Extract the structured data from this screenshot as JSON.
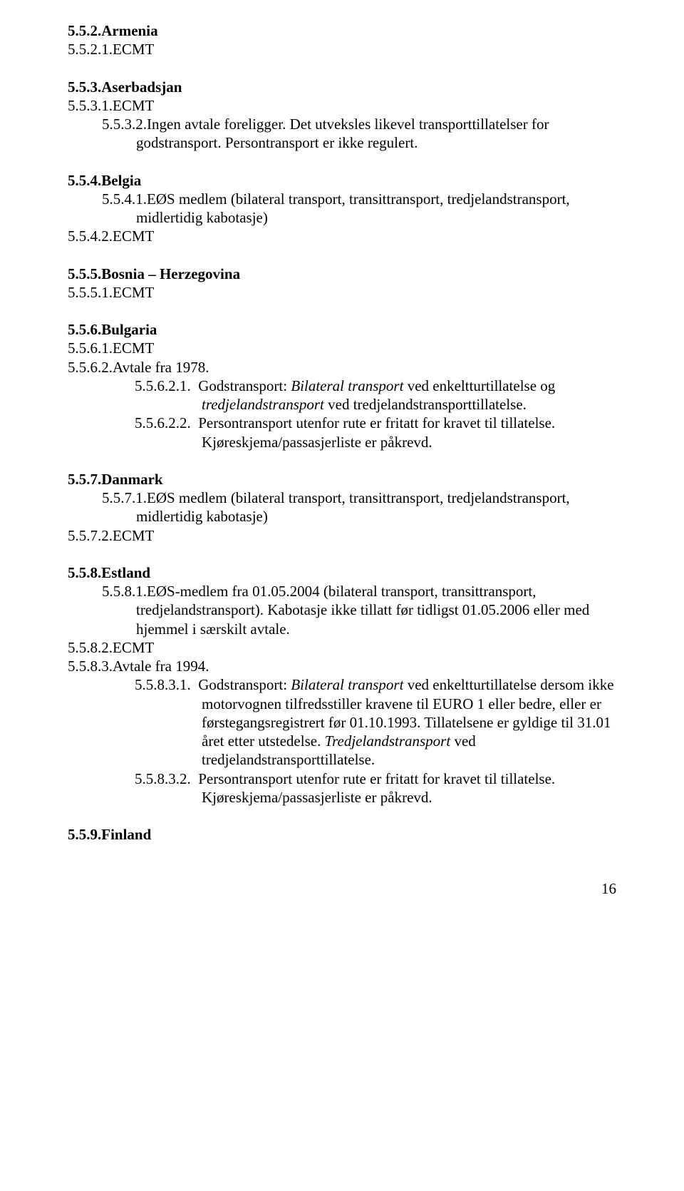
{
  "sections": {
    "armenia": {
      "num": "5.5.2.",
      "title": "Armenia",
      "items": [
        {
          "num": "5.5.2.1.",
          "text": "ECMT"
        }
      ]
    },
    "aserbadsjan": {
      "num": "5.5.3.",
      "title": "Aserbadsjan",
      "items": [
        {
          "num": "5.5.3.1.",
          "text": "ECMT"
        },
        {
          "num": "5.5.3.2.",
          "text": "Ingen avtale foreligger. Det utveksles likevel transporttillatelser for godstransport. Persontransport er ikke regulert."
        }
      ]
    },
    "belgia": {
      "num": "5.5.4.",
      "title": "Belgia",
      "items": [
        {
          "num": "5.5.4.1.",
          "text": "EØS medlem (bilateral transport, transittransport, tredjelandstransport, midlertidig kabotasje)"
        },
        {
          "num": "5.5.4.2.",
          "text": "ECMT"
        }
      ]
    },
    "bosnia": {
      "num": "5.5.5.",
      "title": "Bosnia – Herzegovina",
      "items": [
        {
          "num": "5.5.5.1.",
          "text": "ECMT"
        }
      ]
    },
    "bulgaria": {
      "num": "5.5.6.",
      "title": "Bulgaria",
      "items": [
        {
          "num": "5.5.6.1.",
          "text": "ECMT"
        },
        {
          "num": "5.5.6.2.",
          "text": "Avtale fra 1978."
        }
      ],
      "subitems": [
        {
          "num": "5.5.6.2.1.",
          "pre": "Godstransport: ",
          "it1": "Bilateral transport",
          "mid": " ved enkeltturtillatelse og ",
          "it2": "tredjelandstransport",
          "post": " ved tredjelandstransporttillatelse."
        },
        {
          "num": "5.5.6.2.2.",
          "text": "Persontransport utenfor rute er fritatt for kravet til tillatelse. Kjøreskjema/passasjerliste er påkrevd."
        }
      ]
    },
    "danmark": {
      "num": "5.5.7.",
      "title": "Danmark",
      "items": [
        {
          "num": "5.5.7.1.",
          "text": "EØS medlem (bilateral transport, transittransport, tredjelandstransport, midlertidig kabotasje)"
        },
        {
          "num": "5.5.7.2.",
          "text": "ECMT"
        }
      ]
    },
    "estland": {
      "num": "5.5.8.",
      "title": "Estland",
      "items": [
        {
          "num": "5.5.8.1.",
          "text": "EØS-medlem fra 01.05.2004 (bilateral transport, transittransport, tredjelandstransport). Kabotasje ikke tillatt før tidligst 01.05.2006 eller med hjemmel i særskilt avtale."
        },
        {
          "num": "5.5.8.2.",
          "text": "ECMT"
        },
        {
          "num": "5.5.8.3.",
          "text": "Avtale fra 1994."
        }
      ],
      "subitems": [
        {
          "num": "5.5.8.3.1.",
          "pre": "Godstransport: ",
          "it1": "Bilateral transport",
          "mid1": " ved enkeltturtillatelse dersom ikke motorvognen tilfredsstiller kravene til EURO 1 eller bedre, eller er førstegangsregistrert før 01.10.1993. Tillatelsene er gyldige til 31.01 året etter utstedelse. ",
          "it2": "Tredjelandstransport",
          "post": " ved tredjelandstransporttillatelse."
        },
        {
          "num": "5.5.8.3.2.",
          "text": "Persontransport utenfor rute er fritatt for kravet til tillatelse. Kjøreskjema/passasjerliste er påkrevd."
        }
      ]
    },
    "finland": {
      "num": "5.5.9.",
      "title": "Finland"
    }
  },
  "page_number": "16"
}
